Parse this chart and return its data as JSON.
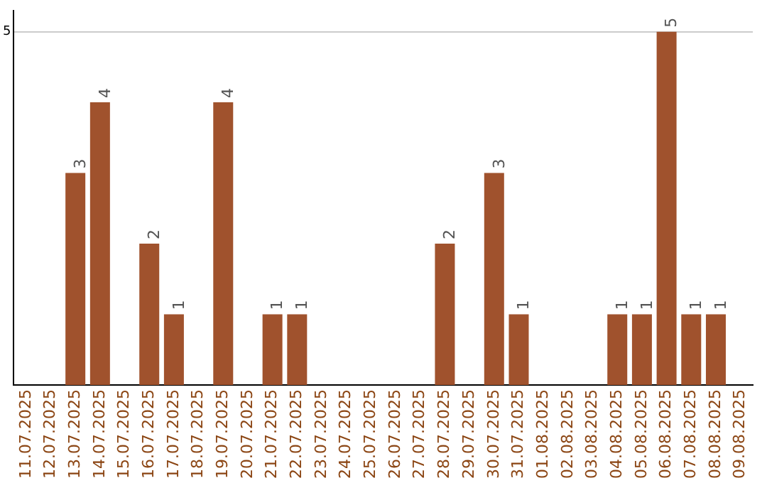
{
  "chart_data": {
    "type": "bar",
    "categories": [
      "11.07.2025",
      "12.07.2025",
      "13.07.2025",
      "14.07.2025",
      "15.07.2025",
      "16.07.2025",
      "17.07.2025",
      "18.07.2025",
      "19.07.2025",
      "20.07.2025",
      "21.07.2025",
      "22.07.2025",
      "23.07.2025",
      "24.07.2025",
      "25.07.2025",
      "26.07.2025",
      "27.07.2025",
      "28.07.2025",
      "29.07.2025",
      "30.07.2025",
      "31.07.2025",
      "01.08.2025",
      "02.08.2025",
      "03.08.2025",
      "04.08.2025",
      "05.08.2025",
      "06.08.2025",
      "07.08.2025",
      "08.08.2025",
      "09.08.2025"
    ],
    "values": [
      null,
      null,
      3,
      4,
      null,
      2,
      1,
      null,
      4,
      null,
      1,
      1,
      null,
      null,
      null,
      null,
      null,
      2,
      null,
      3,
      1,
      null,
      null,
      null,
      1,
      1,
      5,
      1,
      1,
      null
    ],
    "color": "#a0522d",
    "ylim": [
      0,
      5.3
    ],
    "yticks": [
      5
    ],
    "grid": "y",
    "data_labels": true
  }
}
